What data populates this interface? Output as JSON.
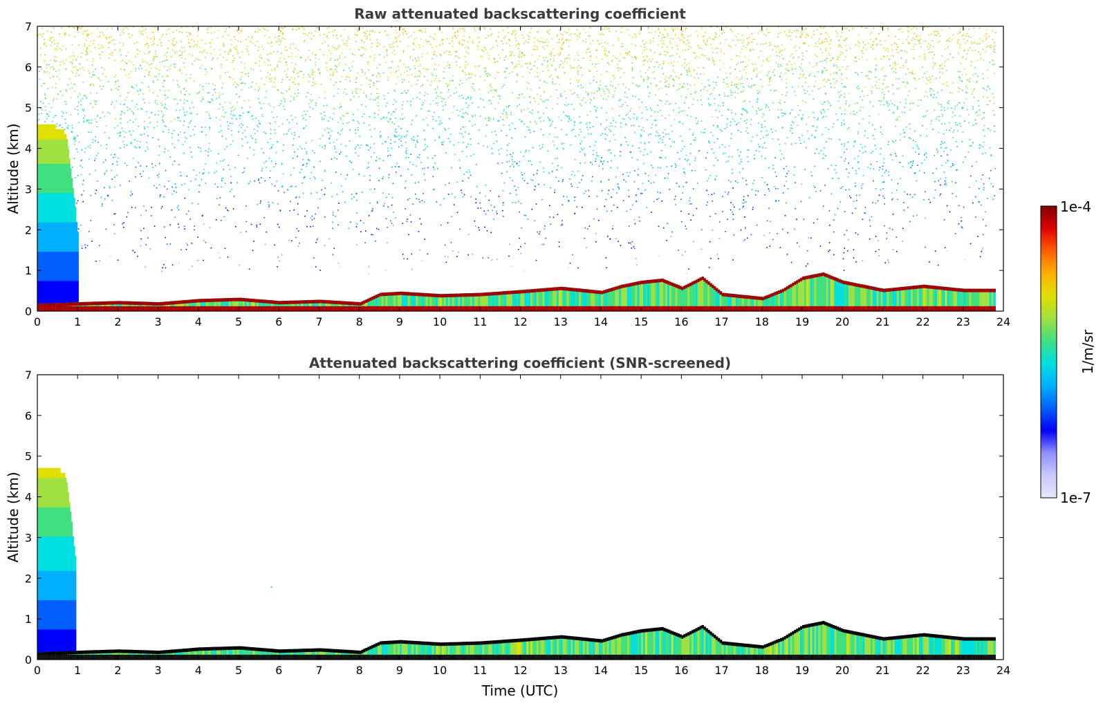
{
  "chart_data": [
    {
      "type": "heatmap",
      "title": "Raw attenuated backscattering coefficient",
      "xlabel": "",
      "ylabel": "Altitude (km)",
      "xlim": [
        0,
        24
      ],
      "ylim": [
        0,
        7
      ],
      "xticks": [
        "0",
        "1",
        "2",
        "3",
        "4",
        "5",
        "6",
        "7",
        "8",
        "9",
        "10",
        "11",
        "12",
        "13",
        "14",
        "15",
        "16",
        "17",
        "18",
        "19",
        "20",
        "21",
        "22",
        "23",
        "24"
      ],
      "yticks": [
        "0",
        "1",
        "2",
        "3",
        "4",
        "5",
        "6",
        "7"
      ],
      "features": {
        "noise_upper_km": [
          1.0,
          7.0
        ],
        "noise_level": "high at top, decreasing downward",
        "early_plume": {
          "t": [
            0,
            1.0
          ],
          "top_km": 4.5
        },
        "boundary_layer_top_km": [
          [
            0,
            0.18
          ],
          [
            1,
            0.22
          ],
          [
            2,
            0.25
          ],
          [
            3,
            0.22
          ],
          [
            4,
            0.3
          ],
          [
            5,
            0.33
          ],
          [
            6,
            0.25
          ],
          [
            7,
            0.28
          ],
          [
            8,
            0.22
          ],
          [
            8.5,
            0.45
          ],
          [
            9,
            0.48
          ],
          [
            10,
            0.42
          ],
          [
            11,
            0.45
          ],
          [
            12,
            0.52
          ],
          [
            13,
            0.6
          ],
          [
            14,
            0.5
          ],
          [
            14.5,
            0.65
          ],
          [
            15,
            0.75
          ],
          [
            15.5,
            0.8
          ],
          [
            16,
            0.6
          ],
          [
            16.5,
            0.85
          ],
          [
            17,
            0.45
          ],
          [
            18,
            0.35
          ],
          [
            18.5,
            0.55
          ],
          [
            19,
            0.85
          ],
          [
            19.5,
            0.95
          ],
          [
            20,
            0.75
          ],
          [
            21,
            0.55
          ],
          [
            22,
            0.65
          ],
          [
            23,
            0.55
          ],
          [
            23.8,
            0.55
          ]
        ]
      }
    },
    {
      "type": "heatmap",
      "title": "Attenuated backscattering coefficient (SNR-screened)",
      "xlabel": "Time (UTC)",
      "ylabel": "Altitude (km)",
      "xlim": [
        0,
        24
      ],
      "ylim": [
        0,
        7
      ],
      "xticks": [
        "0",
        "1",
        "2",
        "3",
        "4",
        "5",
        "6",
        "7",
        "8",
        "9",
        "10",
        "11",
        "12",
        "13",
        "14",
        "15",
        "16",
        "17",
        "18",
        "19",
        "20",
        "21",
        "22",
        "23",
        "24"
      ],
      "yticks": [
        "0",
        "1",
        "2",
        "3",
        "4",
        "5",
        "6",
        "7"
      ],
      "features": {
        "early_plume": {
          "t": [
            0,
            0.95
          ],
          "top_km": 4.7
        },
        "isolated_point": {
          "t": 5.8,
          "alt_km": 1.8
        }
      }
    }
  ],
  "colorbar": {
    "label": "1/m/sr",
    "max_label": "1e-4",
    "min_label": "1e-7",
    "colors": [
      "#e6e6fa",
      "#c8c8ff",
      "#9090ff",
      "#0000ff",
      "#0060ff",
      "#00b0ff",
      "#00e0e0",
      "#40e080",
      "#a0e040",
      "#e0e000",
      "#ffb000",
      "#ff6000",
      "#e00000",
      "#800000"
    ]
  }
}
